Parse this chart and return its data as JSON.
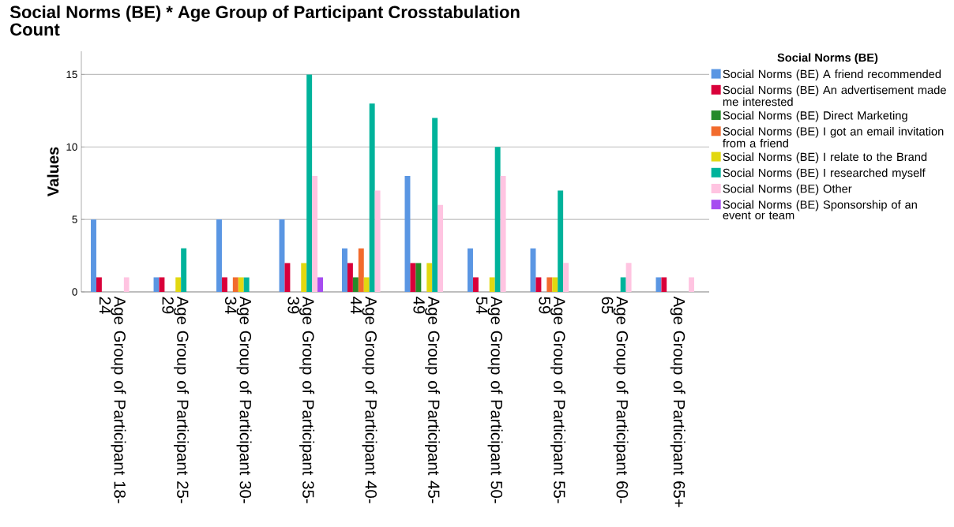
{
  "chart_data": {
    "type": "bar",
    "title": "Social Norms (BE) * Age Group of Participant Crosstabulation",
    "subtitle": "Count",
    "ylabel": "Values",
    "legend_title": "Social Norms (BE)",
    "categories": [
      "Age Group of Participant 18-24",
      "Age Group of Participant 25-29",
      "Age Group of Participant 30-34",
      "Age Group of Participant 35-39",
      "Age Group of Participant 40-44",
      "Age Group of Participant 45-49",
      "Age Group of Participant 50-54",
      "Age Group of Participant 55-59",
      "Age Group of Participant 60-65",
      "Age Group of Participant 65+"
    ],
    "series": [
      {
        "name": "Social Norms (BE) A friend recommended",
        "color": "#5a96e3",
        "values": [
          5,
          1,
          5,
          5,
          3,
          8,
          3,
          3,
          0,
          1
        ]
      },
      {
        "name": "Social Norms (BE) An advertisement made me interested",
        "color": "#d9003a",
        "values": [
          1,
          1,
          1,
          2,
          2,
          2,
          1,
          1,
          0,
          1
        ]
      },
      {
        "name": "Social Norms (BE) Direct Marketing",
        "color": "#268a2a",
        "values": [
          0,
          0,
          0,
          0,
          1,
          2,
          0,
          0,
          0,
          0
        ]
      },
      {
        "name": "Social Norms (BE) I got an email invitation from a friend",
        "color": "#f26b2d",
        "values": [
          0,
          0,
          1,
          0,
          3,
          0,
          0,
          1,
          0,
          0
        ]
      },
      {
        "name": "Social Norms (BE) I relate to the Brand",
        "color": "#e2d810",
        "values": [
          0,
          1,
          1,
          2,
          1,
          2,
          1,
          1,
          0,
          0
        ]
      },
      {
        "name": "Social Norms (BE) I researched myself",
        "color": "#00b39b",
        "values": [
          0,
          3,
          1,
          15,
          13,
          12,
          10,
          7,
          1,
          0
        ]
      },
      {
        "name": "Social Norms (BE) Other",
        "color": "#ffc4e1",
        "values": [
          1,
          0,
          0,
          8,
          7,
          6,
          8,
          2,
          2,
          1
        ]
      },
      {
        "name": "Social Norms (BE) Sponsorship of an event or team",
        "color": "#a64cf0",
        "values": [
          0,
          0,
          0,
          1,
          0,
          0,
          0,
          0,
          0,
          0
        ]
      }
    ],
    "ylim": [
      0,
      16.6
    ],
    "yticks": [
      0,
      5,
      10,
      15
    ],
    "grid": "y",
    "legend": "right"
  }
}
